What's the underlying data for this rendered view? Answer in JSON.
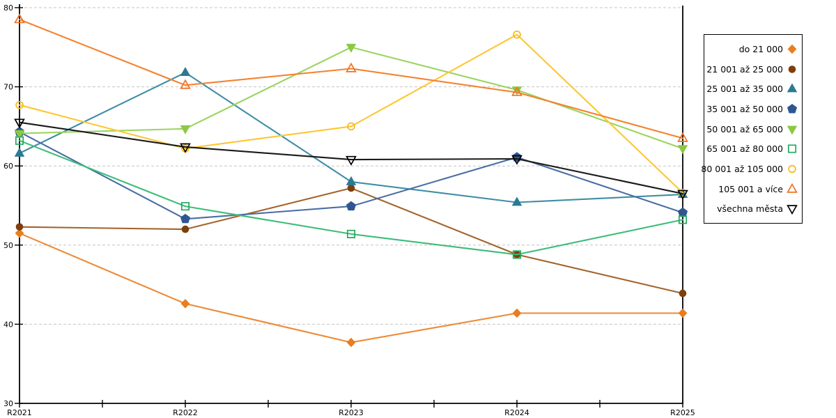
{
  "axes": {
    "x_ticklabels": [
      "R2021",
      "R2022",
      "R2023",
      "R2024",
      "R2025"
    ],
    "y_ticklabels": [
      "30",
      "40",
      "50",
      "60",
      "70",
      "80"
    ]
  },
  "chart_data": {
    "type": "line",
    "categories": [
      "R2021",
      "R2022",
      "R2023",
      "R2024",
      "R2025"
    ],
    "ylim": [
      30,
      80
    ],
    "yticks": [
      30,
      40,
      50,
      60,
      70,
      80
    ],
    "grid": "horizontal dashed gray at 40-80",
    "legend_position": "right",
    "series": [
      {
        "name": "do 21 000",
        "marker": "diamond",
        "filled": true,
        "color": "#E87E1E",
        "line_color": "#EC8A36",
        "values": [
          51.5,
          42.6,
          37.7,
          41.4,
          41.4
        ]
      },
      {
        "name": "21 001 až 25 000",
        "marker": "circle",
        "filled": true,
        "color": "#7D3F0C",
        "line_color": "#A2642B",
        "values": [
          52.3,
          52.0,
          57.2,
          48.8,
          43.9
        ]
      },
      {
        "name": "25 001 až 35 000",
        "marker": "triangle-up",
        "filled": true,
        "color": "#2A7A95",
        "line_color": "#3F8EA6",
        "values": [
          61.6,
          71.8,
          58.0,
          55.4,
          56.4
        ]
      },
      {
        "name": "35 001 až 50 000",
        "marker": "pentagon",
        "filled": true,
        "color": "#2E5792",
        "line_color": "#4A6DA4",
        "values": [
          64.3,
          53.3,
          54.9,
          61.1,
          54.1
        ]
      },
      {
        "name": "50 001 až 65 000",
        "marker": "triangle-down",
        "filled": true,
        "color": "#8BC943",
        "line_color": "#9AD45F",
        "values": [
          64.1,
          64.7,
          75.0,
          69.6,
          62.2
        ]
      },
      {
        "name": "65 001 až 80 000",
        "marker": "square",
        "filled": false,
        "color": "#21A85D",
        "line_color": "#3CBC78",
        "values": [
          63.2,
          54.9,
          51.4,
          48.8,
          53.2
        ]
      },
      {
        "name": "80 001 až 105 000",
        "marker": "circle",
        "filled": false,
        "color": "#F6BA16",
        "line_color": "#FDC733",
        "values": [
          67.7,
          62.2,
          65.0,
          76.6,
          56.6
        ]
      },
      {
        "name": "105 001 a více",
        "marker": "triangle-up",
        "filled": false,
        "color": "#EF7224",
        "line_color": "#F5832F",
        "values": [
          78.5,
          70.2,
          72.3,
          69.3,
          63.5
        ]
      },
      {
        "name": "všechna města",
        "marker": "triangle-down",
        "filled": false,
        "color": "#000000",
        "line_color": "#1A1A1A",
        "values": [
          65.5,
          62.4,
          60.8,
          60.9,
          56.5
        ]
      }
    ]
  }
}
